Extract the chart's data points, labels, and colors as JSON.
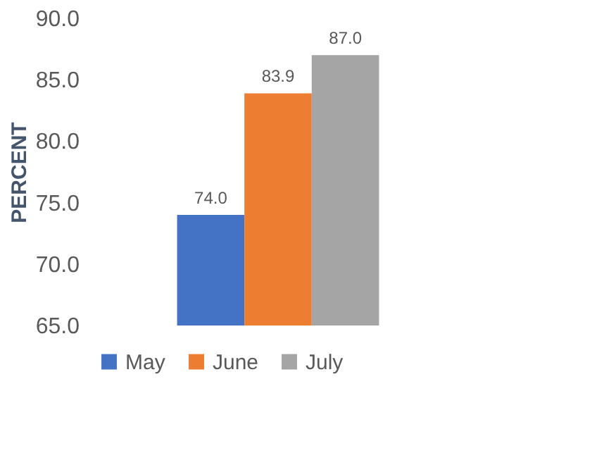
{
  "chart_data": {
    "type": "bar",
    "ylabel": "PERCENT",
    "categories": [
      null
    ],
    "series": [
      {
        "name": "May",
        "color": "#4472c4",
        "values": [
          74.0
        ],
        "value_labels": [
          "74.0"
        ]
      },
      {
        "name": "June",
        "color": "#ed7d31",
        "values": [
          83.9
        ],
        "value_labels": [
          "83.9"
        ]
      },
      {
        "name": "July",
        "color": "#a5a5a5",
        "values": [
          87.0
        ],
        "value_labels": [
          "87.0"
        ]
      }
    ],
    "ylim": [
      65,
      90
    ],
    "yticks": [
      {
        "value": 65,
        "label": "65.0"
      },
      {
        "value": 70,
        "label": "70.0"
      },
      {
        "value": 75,
        "label": "75.0"
      },
      {
        "value": 80,
        "label": "80.0"
      },
      {
        "value": 85,
        "label": "85.0"
      },
      {
        "value": 90,
        "label": "90.0"
      }
    ],
    "grid": false,
    "legend": "bottom"
  }
}
